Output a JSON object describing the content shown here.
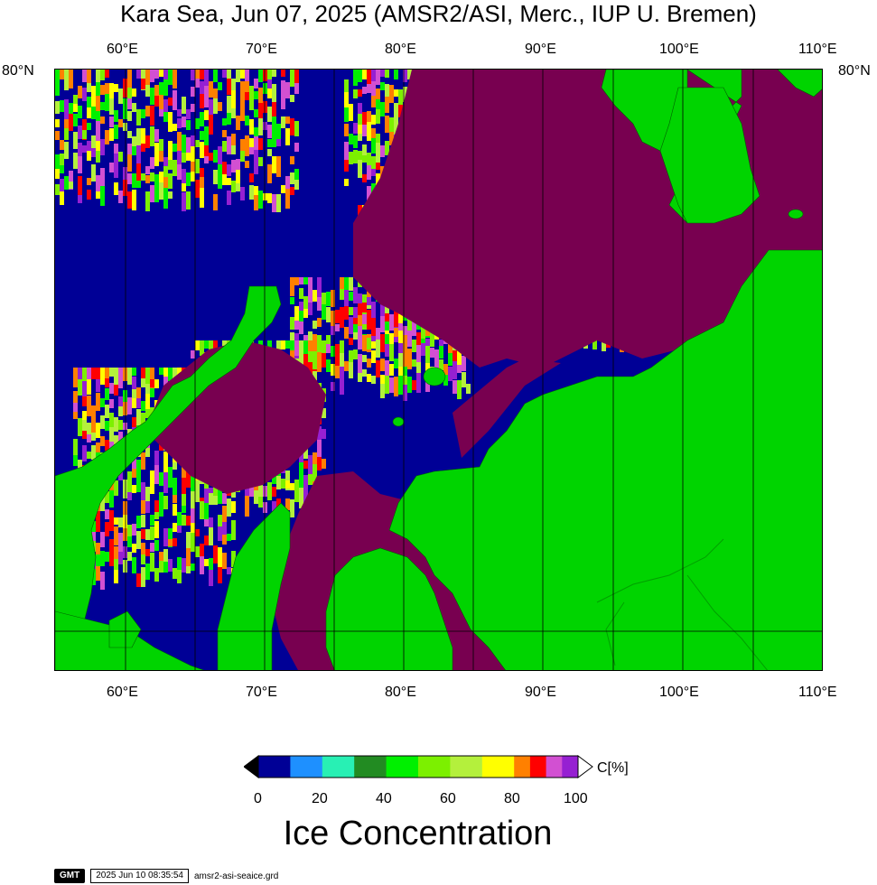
{
  "title": "Kara Sea, Jun 07, 2025 (AMSR2/ASI, Merc., IUP U. Bremen)",
  "map": {
    "region": "Kara Sea",
    "longitude_range": [
      55,
      110
    ],
    "latitude_top_label": "80°N",
    "lon_tick_labels": [
      "60°E",
      "70°E",
      "80°E",
      "90°E",
      "100°E",
      "110°E"
    ],
    "colors": {
      "ocean_open_water": "#000096",
      "land": "#00d400",
      "high_ice": "#780050",
      "gridline": "#000000"
    }
  },
  "colorbar": {
    "unit_label": "C[%]",
    "title": "Ice Concentration",
    "tick_labels": [
      "0",
      "20",
      "40",
      "60",
      "80",
      "100"
    ],
    "bins": [
      {
        "range": [
          0,
          10
        ],
        "color": "#000096"
      },
      {
        "range": [
          10,
          20
        ],
        "color": "#1e90ff"
      },
      {
        "range": [
          20,
          30
        ],
        "color": "#28f0b4"
      },
      {
        "range": [
          30,
          40
        ],
        "color": "#228b22"
      },
      {
        "range": [
          40,
          50
        ],
        "color": "#00f000"
      },
      {
        "range": [
          50,
          60
        ],
        "color": "#7cf000"
      },
      {
        "range": [
          60,
          70
        ],
        "color": "#b4f03c"
      },
      {
        "range": [
          70,
          80
        ],
        "color": "#ffff00"
      },
      {
        "range": [
          80,
          85
        ],
        "color": "#ff8000"
      },
      {
        "range": [
          85,
          90
        ],
        "color": "#ff0000"
      },
      {
        "range": [
          90,
          95
        ],
        "color": "#d250d2"
      },
      {
        "range": [
          95,
          100
        ],
        "color": "#9620d2"
      }
    ],
    "below_color": "#000000",
    "above_color": "#ffffff"
  },
  "footer": {
    "logo_text": "GMT",
    "timestamp": "2025 Jun 10 08:35:54",
    "filename": "amsr2-asi-seaice.grd"
  }
}
